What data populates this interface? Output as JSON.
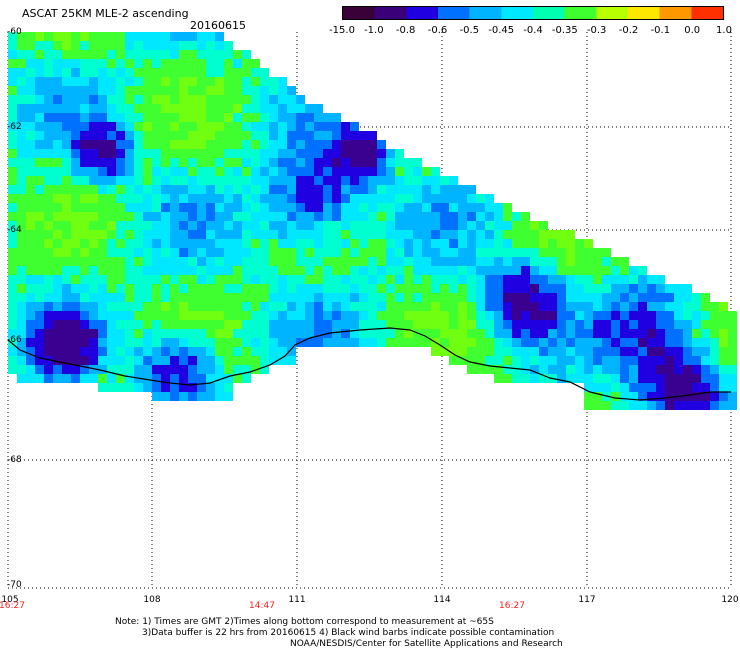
{
  "header": {
    "title": "ASCAT 25KM MLE-2 ascending",
    "date": "20160615"
  },
  "colorbar": {
    "labels": [
      "-15.0",
      "-1.0",
      "-0.8",
      "-0.6",
      "-0.5",
      "-0.45",
      "-0.4",
      "-0.35",
      "-0.3",
      "-0.2",
      "-0.1",
      "0.0",
      "1.0"
    ],
    "colors": [
      "#3a0038",
      "#3a007a",
      "#2000e0",
      "#0070ff",
      "#00b4ff",
      "#00e8ff",
      "#00ffb0",
      "#40ff30",
      "#b8ff00",
      "#ffe800",
      "#ff9800",
      "#ff3000"
    ]
  },
  "axes": {
    "lat_labels": [
      "-60",
      "-62",
      "-64",
      "-66",
      "-68",
      "-70"
    ],
    "lon_labels": [
      "105",
      "108",
      "111",
      "114",
      "117",
      "120"
    ],
    "time_labels": [
      "16:27",
      "14:47",
      "16:27"
    ]
  },
  "notes": {
    "line1": "Note: 1) Times are GMT 2)Times along bottom correspond to measurement at ~65S",
    "line2": "3)Data buffer is 22 hrs from 20160615 4) Black wind barbs indicate possible contamination",
    "line3": "NOAA/NESDIS/Center for Satellite Applications and Research"
  }
}
